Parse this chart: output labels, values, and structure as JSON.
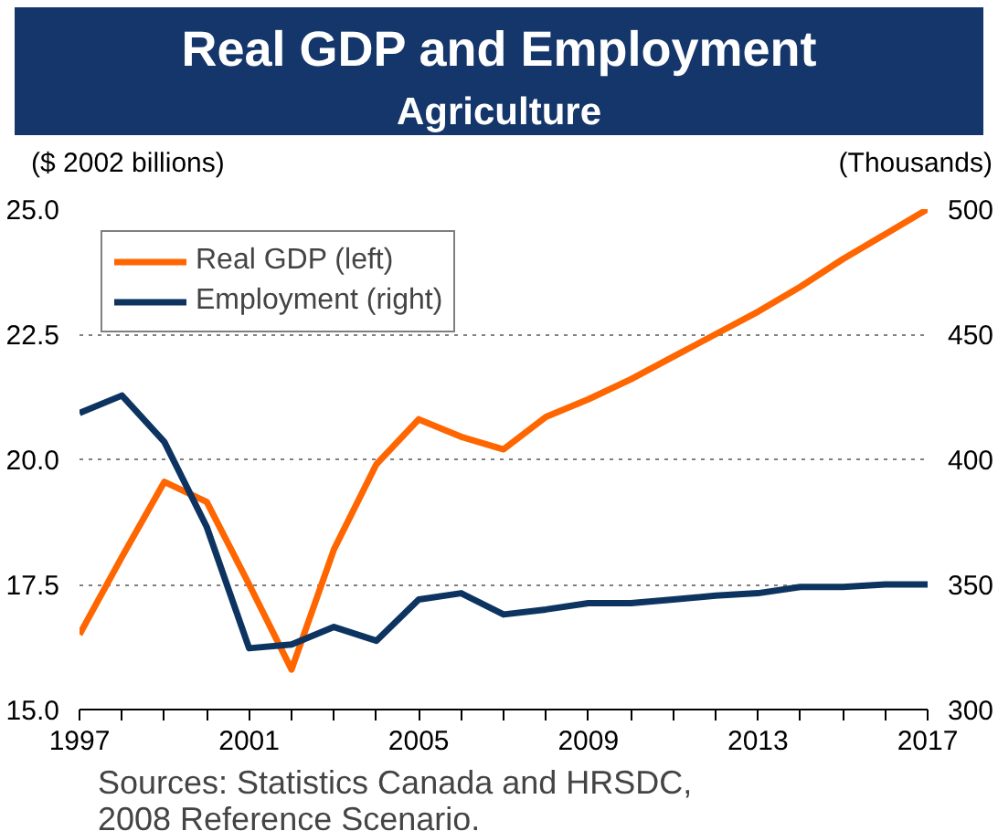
{
  "chart_data": {
    "type": "line",
    "title": "Real GDP and Employment",
    "subtitle": "Agriculture",
    "ylabel": "($ 2002 billions)",
    "y2label": "(Thousands)",
    "x": [
      1997,
      1998,
      1999,
      2000,
      2001,
      2002,
      2003,
      2004,
      2005,
      2006,
      2007,
      2008,
      2009,
      2010,
      2011,
      2012,
      2013,
      2014,
      2015,
      2016,
      2017
    ],
    "series": [
      {
        "name": "Real GDP (left)",
        "color": "#ff6600",
        "values": [
          16.5,
          18.05,
          19.55,
          19.15,
          17.5,
          15.8,
          18.2,
          19.9,
          20.8,
          20.45,
          20.2,
          20.85,
          21.2,
          21.6,
          22.05,
          22.5,
          22.95,
          23.45,
          24.0,
          24.5,
          25.0
        ]
      },
      {
        "name": "Employment (right)",
        "color": "#0d3460",
        "axis": "y2",
        "values": [
          418.5,
          425.5,
          407,
          373,
          324.5,
          326,
          333,
          327.5,
          344,
          346.5,
          338,
          340,
          342.5,
          342.5,
          344,
          345.5,
          346.5,
          349,
          349,
          350,
          350
        ]
      }
    ],
    "xlim": [
      1997,
      2017
    ],
    "xticks": [
      1997,
      2001,
      2005,
      2009,
      2013,
      2017
    ],
    "ylim": [
      15,
      25
    ],
    "yticks": [
      {
        "value": 15,
        "label": "15.0"
      },
      {
        "value": 17.5,
        "label": "17.5"
      },
      {
        "value": 20,
        "label": "20.0"
      },
      {
        "value": 22.5,
        "label": "22.5"
      },
      {
        "value": 25,
        "label": "25.0"
      }
    ],
    "y2lim": [
      300,
      500
    ],
    "y2ticks": [
      300,
      350,
      400,
      450,
      500
    ],
    "grid": "y",
    "legend": "top left",
    "line_style": "solid",
    "marker": "none",
    "annotations": [
      "Sources: Statistics Canada and HRSDC,\n        2008 Reference Scenario."
    ]
  }
}
